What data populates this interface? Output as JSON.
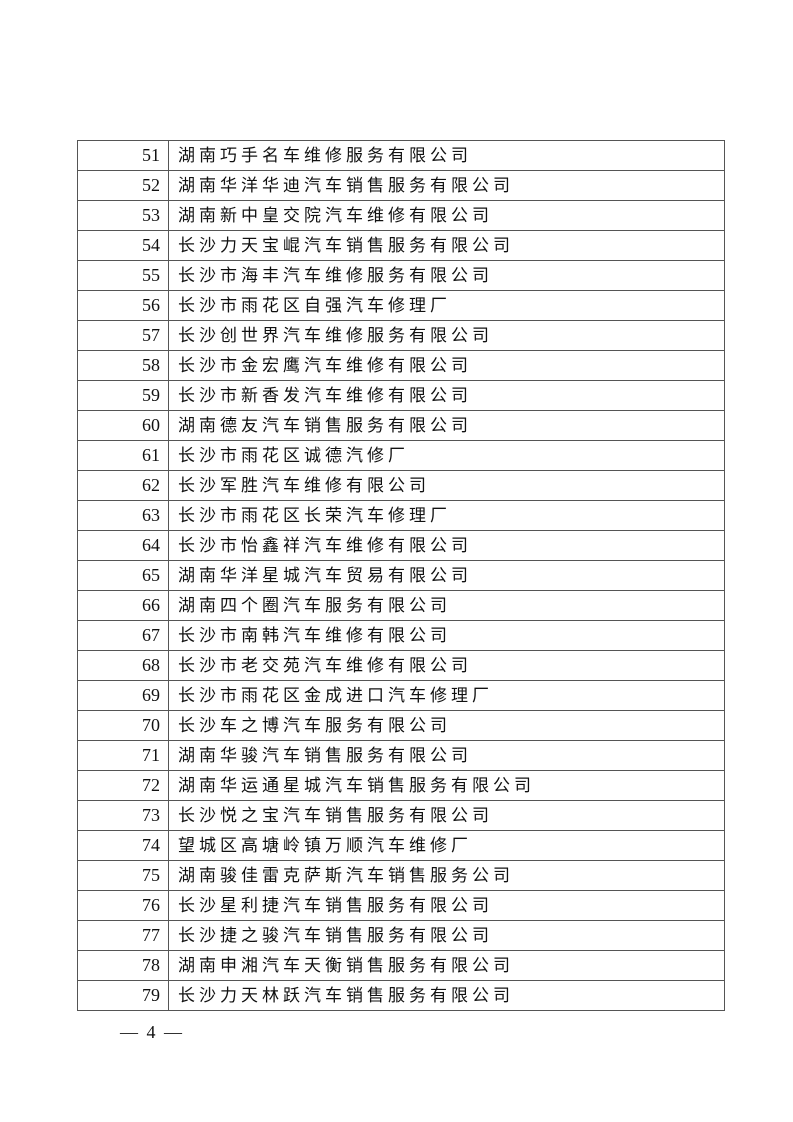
{
  "rows": [
    {
      "no": "51",
      "name": "湖南巧手名车维修服务有限公司"
    },
    {
      "no": "52",
      "name": "湖南华洋华迪汽车销售服务有限公司"
    },
    {
      "no": "53",
      "name": "湖南新中皇交院汽车维修有限公司"
    },
    {
      "no": "54",
      "name": "长沙力天宝崐汽车销售服务有限公司"
    },
    {
      "no": "55",
      "name": "长沙市海丰汽车维修服务有限公司"
    },
    {
      "no": "56",
      "name": "长沙市雨花区自强汽车修理厂"
    },
    {
      "no": "57",
      "name": "长沙创世界汽车维修服务有限公司"
    },
    {
      "no": "58",
      "name": "长沙市金宏鹰汽车维修有限公司"
    },
    {
      "no": "59",
      "name": "长沙市新香发汽车维修有限公司"
    },
    {
      "no": "60",
      "name": "湖南德友汽车销售服务有限公司"
    },
    {
      "no": "61",
      "name": "长沙市雨花区诚德汽修厂"
    },
    {
      "no": "62",
      "name": "长沙军胜汽车维修有限公司"
    },
    {
      "no": "63",
      "name": "长沙市雨花区长荣汽车修理厂"
    },
    {
      "no": "64",
      "name": "长沙市怡鑫祥汽车维修有限公司"
    },
    {
      "no": "65",
      "name": "湖南华洋星城汽车贸易有限公司"
    },
    {
      "no": "66",
      "name": "湖南四个圈汽车服务有限公司"
    },
    {
      "no": "67",
      "name": "长沙市南韩汽车维修有限公司"
    },
    {
      "no": "68",
      "name": "长沙市老交苑汽车维修有限公司"
    },
    {
      "no": "69",
      "name": "长沙市雨花区金成进口汽车修理厂"
    },
    {
      "no": "70",
      "name": "长沙车之博汽车服务有限公司"
    },
    {
      "no": "71",
      "name": "湖南华骏汽车销售服务有限公司"
    },
    {
      "no": "72",
      "name": "湖南华运通星城汽车销售服务有限公司"
    },
    {
      "no": "73",
      "name": "长沙悦之宝汽车销售服务有限公司"
    },
    {
      "no": "74",
      "name": "望城区高塘岭镇万顺汽车维修厂"
    },
    {
      "no": "75",
      "name": "湖南骏佳雷克萨斯汽车销售服务公司"
    },
    {
      "no": "76",
      "name": "长沙星利捷汽车销售服务有限公司"
    },
    {
      "no": "77",
      "name": "长沙捷之骏汽车销售服务有限公司"
    },
    {
      "no": "78",
      "name": "湖南申湘汽车天衡销售服务有限公司"
    },
    {
      "no": "79",
      "name": "长沙力天林跃汽车销售服务有限公司"
    }
  ],
  "footer": {
    "page_number": "— 4 —"
  }
}
